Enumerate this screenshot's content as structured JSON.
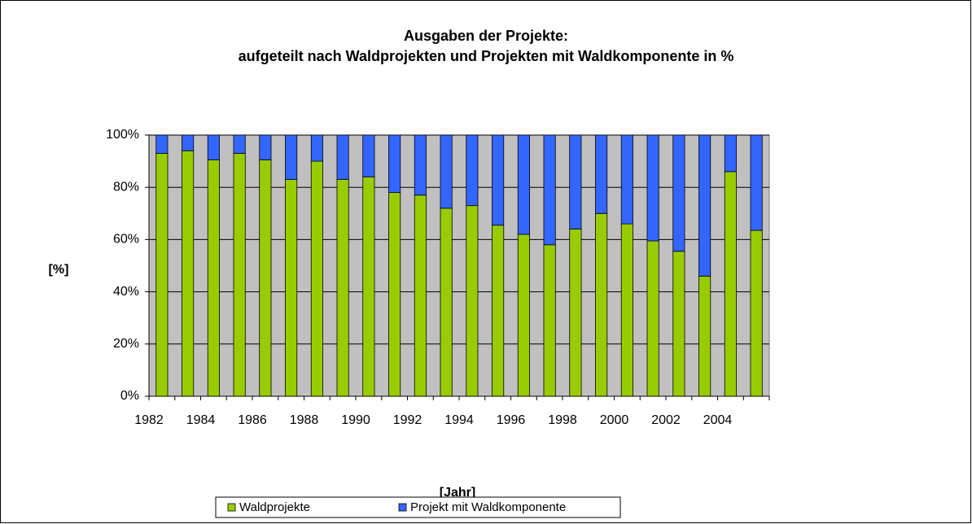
{
  "chart_data": {
    "type": "stacked_bar",
    "title": "Ausgaben der Projekte:",
    "subtitle": "aufgeteilt nach Waldprojekten und Projekten mit Waldkomponente in %",
    "x_label": "[Jahr]",
    "y_label": "[%]",
    "categories": [
      "1982",
      null,
      "1984",
      null,
      "1986",
      null,
      "1988",
      null,
      "1990",
      null,
      "1992",
      null,
      "1994",
      null,
      "1996",
      null,
      "1998",
      null,
      "2000",
      null,
      "2002",
      null,
      "2004",
      null
    ],
    "series": [
      {
        "name": "Waldprojekte",
        "color": "#99cc00",
        "values": [
          93,
          94,
          90.5,
          93,
          90.5,
          83,
          90,
          83,
          84,
          78,
          77,
          72,
          73,
          65.5,
          62,
          58,
          64,
          70,
          66,
          59.5,
          55.5,
          46,
          86,
          63.5
        ]
      },
      {
        "name": "Projekt mit Waldkomponente",
        "color": "#3366ff",
        "values": [
          7,
          6,
          9.5,
          7,
          9.5,
          17,
          10,
          17,
          16,
          22,
          23,
          28,
          27,
          34.5,
          38,
          42,
          36,
          30,
          34,
          40.5,
          44.5,
          54,
          14,
          36.5
        ]
      }
    ],
    "ylim": [
      0,
      100
    ],
    "yticks": [
      {
        "value": 0,
        "label": "0%"
      },
      {
        "value": 20,
        "label": "20%"
      },
      {
        "value": 40,
        "label": "40%"
      },
      {
        "value": 60,
        "label": "60%"
      },
      {
        "value": 80,
        "label": "80%"
      },
      {
        "value": 100,
        "label": "100%"
      }
    ],
    "grid": true,
    "plot_background": "#c0c0c0",
    "legend": "bottom"
  }
}
